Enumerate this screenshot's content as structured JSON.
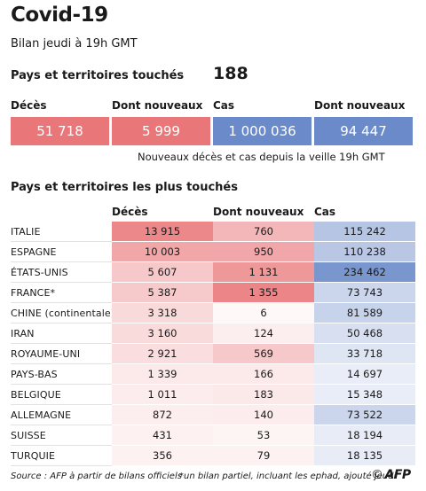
{
  "header": {
    "title": "Covid-19",
    "subtitle": "Bilan jeudi à 19h GMT",
    "affected_label": "Pays et territoires touchés",
    "affected_value": "188"
  },
  "summary": {
    "columns": [
      {
        "label": "Décès",
        "value": "51 718",
        "color": "#e9777a"
      },
      {
        "label": "Dont nouveaux",
        "value": "5 999",
        "color": "#e9777a"
      },
      {
        "label": "Cas",
        "value": "1 000 036",
        "color": "#6b8ac9"
      },
      {
        "label": "Dont nouveaux",
        "value": "94 447",
        "color": "#6b8ac9"
      }
    ],
    "note": "Nouveaux décès et cas depuis la veille 19h GMT"
  },
  "table": {
    "title": "Pays et territoires les plus touchés",
    "headers": [
      "Décès",
      "Dont nouveaux",
      "Cas"
    ],
    "rows": [
      {
        "country": "ITALIE",
        "deaths": "13 915",
        "new_deaths": "760",
        "cases": "115 242",
        "deaths_num": 13915,
        "new_num": 760,
        "cases_num": 115242
      },
      {
        "country": "ESPAGNE",
        "deaths": "10 003",
        "new_deaths": "950",
        "cases": "110 238",
        "deaths_num": 10003,
        "new_num": 950,
        "cases_num": 110238
      },
      {
        "country": "ÉTATS-UNIS",
        "deaths": "5 607",
        "new_deaths": "1 131",
        "cases": "234 462",
        "deaths_num": 5607,
        "new_num": 1131,
        "cases_num": 234462
      },
      {
        "country": "FRANCE*",
        "deaths": "5 387",
        "new_deaths": "1 355",
        "cases": "73 743",
        "deaths_num": 5387,
        "new_num": 1355,
        "cases_num": 73743
      },
      {
        "country": "CHINE (continentale)",
        "deaths": "3 318",
        "new_deaths": "6",
        "cases": "81 589",
        "deaths_num": 3318,
        "new_num": 6,
        "cases_num": 81589
      },
      {
        "country": "IRAN",
        "deaths": "3 160",
        "new_deaths": "124",
        "cases": "50 468",
        "deaths_num": 3160,
        "new_num": 124,
        "cases_num": 50468
      },
      {
        "country": "ROYAUME-UNI",
        "deaths": "2 921",
        "new_deaths": "569",
        "cases": "33 718",
        "deaths_num": 2921,
        "new_num": 569,
        "cases_num": 33718
      },
      {
        "country": "PAYS-BAS",
        "deaths": "1 339",
        "new_deaths": "166",
        "cases": "14 697",
        "deaths_num": 1339,
        "new_num": 166,
        "cases_num": 14697
      },
      {
        "country": "BELGIQUE",
        "deaths": "1 011",
        "new_deaths": "183",
        "cases": "15 348",
        "deaths_num": 1011,
        "new_num": 183,
        "cases_num": 15348
      },
      {
        "country": "ALLEMAGNE",
        "deaths": "872",
        "new_deaths": "140",
        "cases": "73 522",
        "deaths_num": 872,
        "new_num": 140,
        "cases_num": 73522
      },
      {
        "country": "SUISSE",
        "deaths": "431",
        "new_deaths": "53",
        "cases": "18 194",
        "deaths_num": 431,
        "new_num": 53,
        "cases_num": 18194
      },
      {
        "country": "TURQUIE",
        "deaths": "356",
        "new_deaths": "79",
        "cases": "18 135",
        "deaths_num": 356,
        "new_num": 79,
        "cases_num": 18135
      }
    ]
  },
  "footer": {
    "source": "Source : AFP à partir de bilans officiels",
    "note": "*un bilan partiel, incluant les ephad, ajouté jeudi",
    "logo": "AFP",
    "logo_symbol": "©"
  },
  "colors": {
    "red_full": "#e9777a",
    "blue_full": "#6b8ac9"
  }
}
